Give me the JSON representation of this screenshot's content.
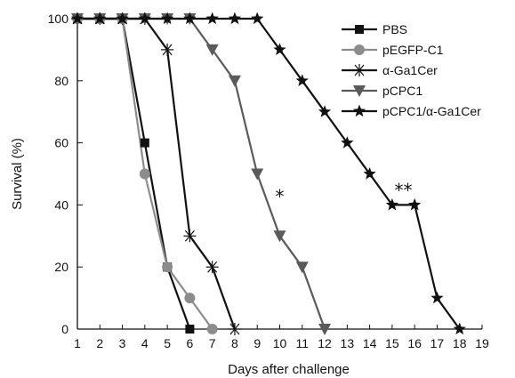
{
  "chart_data": {
    "type": "line",
    "title": "",
    "xlabel": "Days after challenge",
    "ylabel": "Survival (%)",
    "xlim": [
      1,
      19
    ],
    "ylim": [
      0,
      100
    ],
    "x_ticks": [
      1,
      2,
      3,
      4,
      5,
      6,
      7,
      8,
      9,
      10,
      11,
      12,
      13,
      14,
      15,
      16,
      17,
      18,
      19
    ],
    "y_ticks": [
      0,
      20,
      40,
      60,
      80,
      100
    ],
    "legend_position": "top-right",
    "series": [
      {
        "name": "PBS",
        "color": "#111111",
        "marker": "square",
        "x": [
          1,
          2,
          3,
          4,
          5,
          6
        ],
        "y": [
          100,
          100,
          100,
          60,
          20,
          0
        ]
      },
      {
        "name": "pEGFP-C1",
        "color": "#8c8c8c",
        "marker": "circle",
        "x": [
          1,
          2,
          3,
          4,
          5,
          6,
          7
        ],
        "y": [
          100,
          100,
          100,
          50,
          20,
          10,
          0
        ]
      },
      {
        "name": "α-Ga1Cer",
        "color": "#111111",
        "marker": "asterisk",
        "x": [
          1,
          2,
          3,
          4,
          5,
          6,
          7,
          8
        ],
        "y": [
          100,
          100,
          100,
          100,
          90,
          30,
          20,
          0
        ]
      },
      {
        "name": "pCPC1",
        "color": "#5a5a5a",
        "marker": "triangle-down",
        "x": [
          1,
          2,
          3,
          4,
          5,
          6,
          7,
          8,
          9,
          10,
          11,
          12
        ],
        "y": [
          100,
          100,
          100,
          100,
          100,
          100,
          90,
          80,
          50,
          30,
          20,
          0
        ]
      },
      {
        "name": "pCPC1/α-Ga1Cer",
        "color": "#111111",
        "marker": "star",
        "x": [
          1,
          2,
          3,
          4,
          5,
          6,
          7,
          8,
          9,
          10,
          11,
          12,
          13,
          14,
          15,
          16,
          17,
          18
        ],
        "y": [
          100,
          100,
          100,
          100,
          100,
          100,
          100,
          100,
          100,
          90,
          80,
          70,
          60,
          50,
          40,
          40,
          10,
          0
        ]
      }
    ],
    "annotations": [
      {
        "text": "*",
        "x": 10,
        "y": 43
      },
      {
        "text": "**",
        "x": 15.5,
        "y": 45
      }
    ]
  }
}
